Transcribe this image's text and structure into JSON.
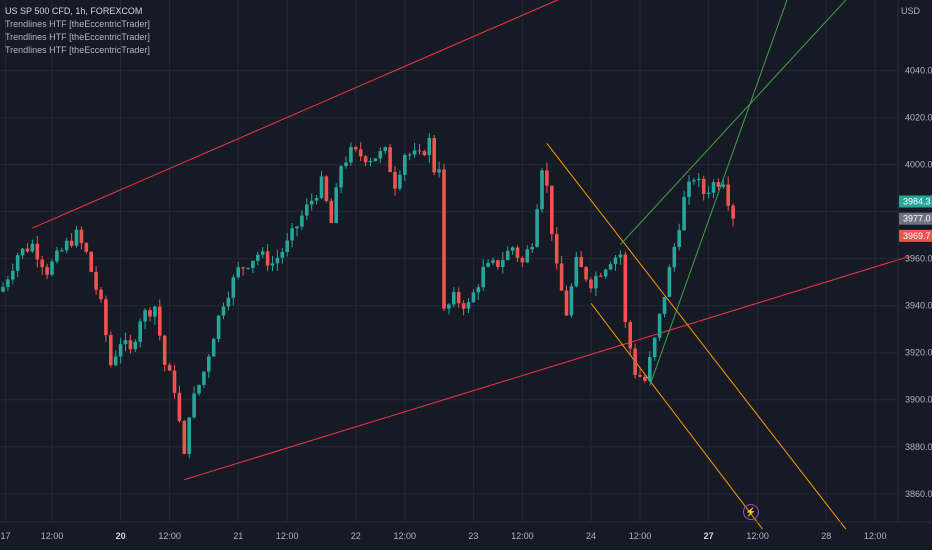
{
  "legend": {
    "symbol_line": "US SP 500 CFD, 1h, FOREXCOM",
    "indicators": [
      "Trendlines HTF [theEccentricTrader]",
      "Trendlines HTF [theEccentricTrader]",
      "Trendlines HTF [theEccentricTrader]"
    ]
  },
  "currency": "USD",
  "price_axis": {
    "labels": [
      "4040.0",
      "4020.0",
      "4000.0",
      "3960.0",
      "3940.0",
      "3920.0",
      "3900.0",
      "3880.0",
      "3860.0"
    ],
    "ticks": [
      4040,
      4020,
      4000,
      3960,
      3940,
      3920,
      3900,
      3880,
      3860
    ],
    "ylim": [
      3848,
      4070
    ]
  },
  "price_tags": [
    {
      "value": 3984.3,
      "label": "3984.3",
      "color": "#26a69a"
    },
    {
      "value": 3977.0,
      "label": "3977.0",
      "color": "#6f7380"
    },
    {
      "value": 3969.7,
      "label": "3969.7",
      "color": "#ef5350"
    }
  ],
  "time_axis": {
    "labels": [
      {
        "text": "17",
        "bold": false
      },
      {
        "text": "12:00",
        "bold": false
      },
      {
        "text": "20",
        "bold": true
      },
      {
        "text": "12:00",
        "bold": false
      },
      {
        "text": "21",
        "bold": false
      },
      {
        "text": "12:00",
        "bold": false
      },
      {
        "text": "22",
        "bold": false
      },
      {
        "text": "12:00",
        "bold": false
      },
      {
        "text": "23",
        "bold": false
      },
      {
        "text": "12:00",
        "bold": false
      },
      {
        "text": "24",
        "bold": false
      },
      {
        "text": "12:00",
        "bold": false
      },
      {
        "text": "27",
        "bold": true
      },
      {
        "text": "12:00",
        "bold": false
      },
      {
        "text": "28",
        "bold": false
      },
      {
        "text": "12:00",
        "bold": false
      }
    ],
    "positions": [
      0.5,
      10,
      24,
      34,
      48,
      58,
      72,
      82,
      96,
      106,
      120,
      130,
      144,
      154,
      168,
      178
    ]
  },
  "colors": {
    "bull": "#26a69a",
    "bear": "#ef5350",
    "channel": "#f23645",
    "fall": "#ff9800",
    "rise": "#43a047",
    "grid": "#242835"
  },
  "chart_data": {
    "type": "candlestick",
    "title": "US SP 500 CFD, 1h, FOREXCOM",
    "x_unit": "hourly bar index (trading hours)",
    "ylabel": "USD",
    "ylim": [
      3848,
      4070
    ],
    "anchors": [
      {
        "i": 0,
        "p": 3948
      },
      {
        "i": 3,
        "p": 3962
      },
      {
        "i": 6,
        "p": 3966
      },
      {
        "i": 9,
        "p": 3955
      },
      {
        "i": 13,
        "p": 3966
      },
      {
        "i": 15,
        "p": 3970
      },
      {
        "i": 17,
        "p": 3962
      },
      {
        "i": 20,
        "p": 3940
      },
      {
        "i": 22,
        "p": 3915
      },
      {
        "i": 24,
        "p": 3925
      },
      {
        "i": 26,
        "p": 3920
      },
      {
        "i": 28,
        "p": 3935
      },
      {
        "i": 31,
        "p": 3940
      },
      {
        "i": 33,
        "p": 3915
      },
      {
        "i": 35,
        "p": 3905
      },
      {
        "i": 37,
        "p": 3875
      },
      {
        "i": 38,
        "p": 3895
      },
      {
        "i": 41,
        "p": 3912
      },
      {
        "i": 43,
        "p": 3928
      },
      {
        "i": 45,
        "p": 3942
      },
      {
        "i": 48,
        "p": 3955
      },
      {
        "i": 52,
        "p": 3962
      },
      {
        "i": 55,
        "p": 3958
      },
      {
        "i": 58,
        "p": 3966
      },
      {
        "i": 61,
        "p": 3978
      },
      {
        "i": 65,
        "p": 3992
      },
      {
        "i": 67,
        "p": 3975
      },
      {
        "i": 69,
        "p": 4000
      },
      {
        "i": 71,
        "p": 4005
      },
      {
        "i": 75,
        "p": 4003
      },
      {
        "i": 78,
        "p": 4005
      },
      {
        "i": 80,
        "p": 3992
      },
      {
        "i": 82,
        "p": 4005
      },
      {
        "i": 85,
        "p": 4003
      },
      {
        "i": 87,
        "p": 4010
      },
      {
        "i": 88,
        "p": 3998
      },
      {
        "i": 89,
        "p": 4000
      },
      {
        "i": 90,
        "p": 3937
      },
      {
        "i": 92,
        "p": 3943
      },
      {
        "i": 95,
        "p": 3940
      },
      {
        "i": 98,
        "p": 3955
      },
      {
        "i": 101,
        "p": 3958
      },
      {
        "i": 104,
        "p": 3965
      },
      {
        "i": 106,
        "p": 3958
      },
      {
        "i": 108,
        "p": 3968
      },
      {
        "i": 110,
        "p": 4000
      },
      {
        "i": 111,
        "p": 3990
      },
      {
        "i": 113,
        "p": 3955
      },
      {
        "i": 115,
        "p": 3937
      },
      {
        "i": 117,
        "p": 3958
      },
      {
        "i": 120,
        "p": 3950
      },
      {
        "i": 122,
        "p": 3955
      },
      {
        "i": 124,
        "p": 3960
      },
      {
        "i": 126,
        "p": 3962
      },
      {
        "i": 127,
        "p": 3932
      },
      {
        "i": 129,
        "p": 3912
      },
      {
        "i": 131,
        "p": 3908
      },
      {
        "i": 133,
        "p": 3925
      },
      {
        "i": 135,
        "p": 3945
      },
      {
        "i": 137,
        "p": 3965
      },
      {
        "i": 139,
        "p": 3985
      },
      {
        "i": 141,
        "p": 3995
      },
      {
        "i": 143,
        "p": 3988
      },
      {
        "i": 145,
        "p": 3992
      },
      {
        "i": 147,
        "p": 3994
      },
      {
        "i": 149,
        "p": 3977
      }
    ],
    "trendlines": [
      {
        "name": "channel-upper",
        "color": "#f23645",
        "from": {
          "i": 6,
          "p": 3973
        },
        "to": {
          "i": 185,
          "p": 4135
        }
      },
      {
        "name": "channel-lower",
        "color": "#f23645",
        "from": {
          "i": 37,
          "p": 3866
        },
        "to": {
          "i": 185,
          "p": 3961
        }
      },
      {
        "name": "falling-upper",
        "color": "#ff9800",
        "from": {
          "i": 111,
          "p": 4009
        },
        "to": {
          "i": 172,
          "p": 3845
        }
      },
      {
        "name": "falling-lower",
        "color": "#ff9800",
        "from": {
          "i": 120,
          "p": 3941
        },
        "to": {
          "i": 155,
          "p": 3845
        }
      },
      {
        "name": "rising-a",
        "color": "#43a047",
        "from": {
          "i": 126,
          "p": 3966
        },
        "to": {
          "i": 172,
          "p": 4070
        }
      },
      {
        "name": "rising-b",
        "color": "#43a047",
        "from": {
          "i": 132,
          "p": 3906
        },
        "to": {
          "i": 160,
          "p": 4070
        }
      }
    ],
    "price_tags": [
      3984.3,
      3977.0,
      3969.7
    ],
    "current_price": 3977.0
  }
}
